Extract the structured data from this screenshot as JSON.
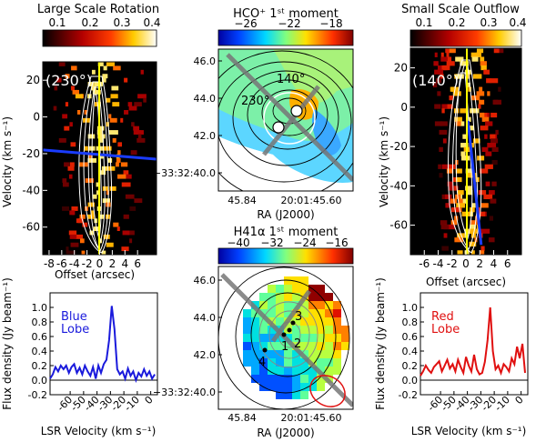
{
  "chart_data": [
    {
      "id": "large_scale_rotation",
      "type": "heatmap",
      "title": "Large Scale Rotation",
      "colorbar": {
        "ticks": [
          "0.1",
          "0.2",
          "0.3",
          "0.4"
        ],
        "cmap": "hot"
      },
      "xlabel": "Offset (arcsec)",
      "ylabel": "Velocity (km s⁻¹)",
      "xticks": [
        "-8",
        "-6",
        "-4",
        "-2",
        "0",
        "2",
        "4",
        "6"
      ],
      "yticks": [
        "20",
        "0",
        "-20",
        "-40",
        "-60"
      ],
      "xlim": [
        -9,
        9
      ],
      "ylim": [
        -75,
        30
      ],
      "annotation": "(230°)",
      "fit_line": {
        "color": "#1a3cff",
        "x": [
          -9,
          9
        ],
        "y": [
          -18,
          -23
        ]
      }
    },
    {
      "id": "hco_moment",
      "type": "heatmap",
      "title": "HCO⁺ 1ˢᵗ moment",
      "colorbar": {
        "ticks": [
          "−26",
          "−22",
          "−18"
        ],
        "cmap": "jet"
      },
      "xlabel": "RA (J2000)",
      "xticks": [
        "45.84",
        "20:01:45.60"
      ],
      "yticks": [
        "46.0",
        "44.0",
        "42.0",
        "−33:32:40.0"
      ],
      "annotations": [
        "140°",
        "230°"
      ]
    },
    {
      "id": "small_scale_outflow",
      "type": "heatmap",
      "title": "Small Scale Outflow",
      "colorbar": {
        "ticks": [
          "0.1",
          "0.2",
          "0.3",
          "0.4"
        ],
        "cmap": "hot"
      },
      "xlabel": "Offset (arcsec)",
      "ylabel": "Velocity (km s⁻¹)",
      "xticks": [
        "-6",
        "-4",
        "-2",
        "0",
        "2",
        "4",
        "6"
      ],
      "yticks": [
        "20",
        "0",
        "-20",
        "-40",
        "-60"
      ],
      "xlim": [
        -8,
        8
      ],
      "ylim": [
        -75,
        30
      ],
      "annotation": "(140°)",
      "fit_line": {
        "color": "#1a3cff",
        "x": [
          0.3,
          2.2
        ],
        "y": [
          -7,
          -70
        ]
      }
    },
    {
      "id": "blue_lobe_spectrum",
      "type": "line",
      "legend": [
        "Blue",
        "Lobe"
      ],
      "color": "#1a1adc",
      "xlabel": "LSR Velocity (km s⁻¹)",
      "ylabel": "Flux density (Jy beam⁻¹)",
      "xticks": [
        "-60",
        "-50",
        "-40",
        "-30",
        "-20",
        "-10",
        "0"
      ],
      "yticks": [
        "1.0",
        "0.8",
        "0.6",
        "0.4",
        "0.2",
        "0.0",
        "-0.2"
      ],
      "xlim": [
        -75,
        5
      ],
      "ylim": [
        -0.2,
        1.2
      ],
      "x": [
        -75,
        -73,
        -71,
        -69,
        -67,
        -65,
        -63,
        -61,
        -59,
        -57,
        -55,
        -53,
        -51,
        -49,
        -47,
        -45,
        -43,
        -41,
        -39,
        -37,
        -35,
        -33,
        -31,
        -29,
        -27,
        -25,
        -23,
        -21,
        -19,
        -17,
        -15,
        -13,
        -11,
        -9,
        -7,
        -5,
        -3,
        -1,
        1,
        3
      ],
      "y": [
        0.02,
        0.08,
        0.18,
        0.12,
        0.2,
        0.15,
        0.2,
        0.1,
        0.18,
        0.22,
        0.1,
        0.17,
        0.08,
        0.2,
        0.12,
        0.06,
        0.18,
        0.02,
        0.2,
        0.1,
        0.22,
        0.28,
        0.55,
        1.02,
        0.7,
        0.15,
        0.08,
        0.12,
        0.02,
        0.16,
        0.06,
        0.12,
        0.0,
        0.1,
        0.05,
        0.15,
        0.06,
        0.12,
        0.02,
        0.08
      ]
    },
    {
      "id": "h41a_moment",
      "type": "heatmap",
      "title": "H41α 1ˢᵗ moment",
      "colorbar": {
        "ticks": [
          "−40",
          "−32",
          "−24",
          "−16"
        ],
        "cmap": "jet"
      },
      "xlabel": "RA (J2000)",
      "xticks": [
        "45.84",
        "20:01:45.60"
      ],
      "yticks": [
        "46.0",
        "44.0",
        "42.0",
        "−33:32:40.0"
      ],
      "sources": [
        "1",
        "2",
        "3",
        "4"
      ]
    },
    {
      "id": "red_lobe_spectrum",
      "type": "line",
      "legend": [
        "Red",
        "Lobe"
      ],
      "color": "#e01010",
      "xlabel": "LSR Velocity (km s⁻¹)",
      "ylabel": "Flux density (Jy beam⁻¹)",
      "xticks": [
        "-60",
        "-50",
        "-40",
        "-30",
        "-20",
        "-10",
        "0"
      ],
      "yticks": [
        "1.0",
        "0.8",
        "0.6",
        "0.4",
        "0.2",
        "0.0",
        "-0.2"
      ],
      "xlim": [
        -75,
        5
      ],
      "ylim": [
        -0.2,
        1.2
      ],
      "x": [
        -75,
        -73,
        -71,
        -69,
        -67,
        -65,
        -63,
        -61,
        -59,
        -57,
        -55,
        -53,
        -51,
        -49,
        -47,
        -45,
        -43,
        -41,
        -39,
        -37,
        -35,
        -33,
        -31,
        -29,
        -27,
        -25,
        -23,
        -21,
        -19,
        -17,
        -15,
        -13,
        -11,
        -9,
        -7,
        -5,
        -3,
        -1,
        1,
        3
      ],
      "y": [
        0.06,
        0.12,
        0.2,
        0.14,
        0.1,
        0.18,
        0.22,
        0.26,
        0.12,
        0.2,
        0.28,
        0.16,
        0.22,
        0.12,
        0.28,
        0.18,
        0.1,
        0.32,
        0.2,
        0.12,
        0.35,
        0.15,
        0.08,
        0.1,
        0.25,
        0.55,
        1.0,
        0.4,
        0.15,
        0.2,
        0.1,
        0.22,
        0.18,
        0.12,
        0.3,
        0.22,
        0.46,
        0.3,
        0.5,
        0.1
      ]
    }
  ]
}
